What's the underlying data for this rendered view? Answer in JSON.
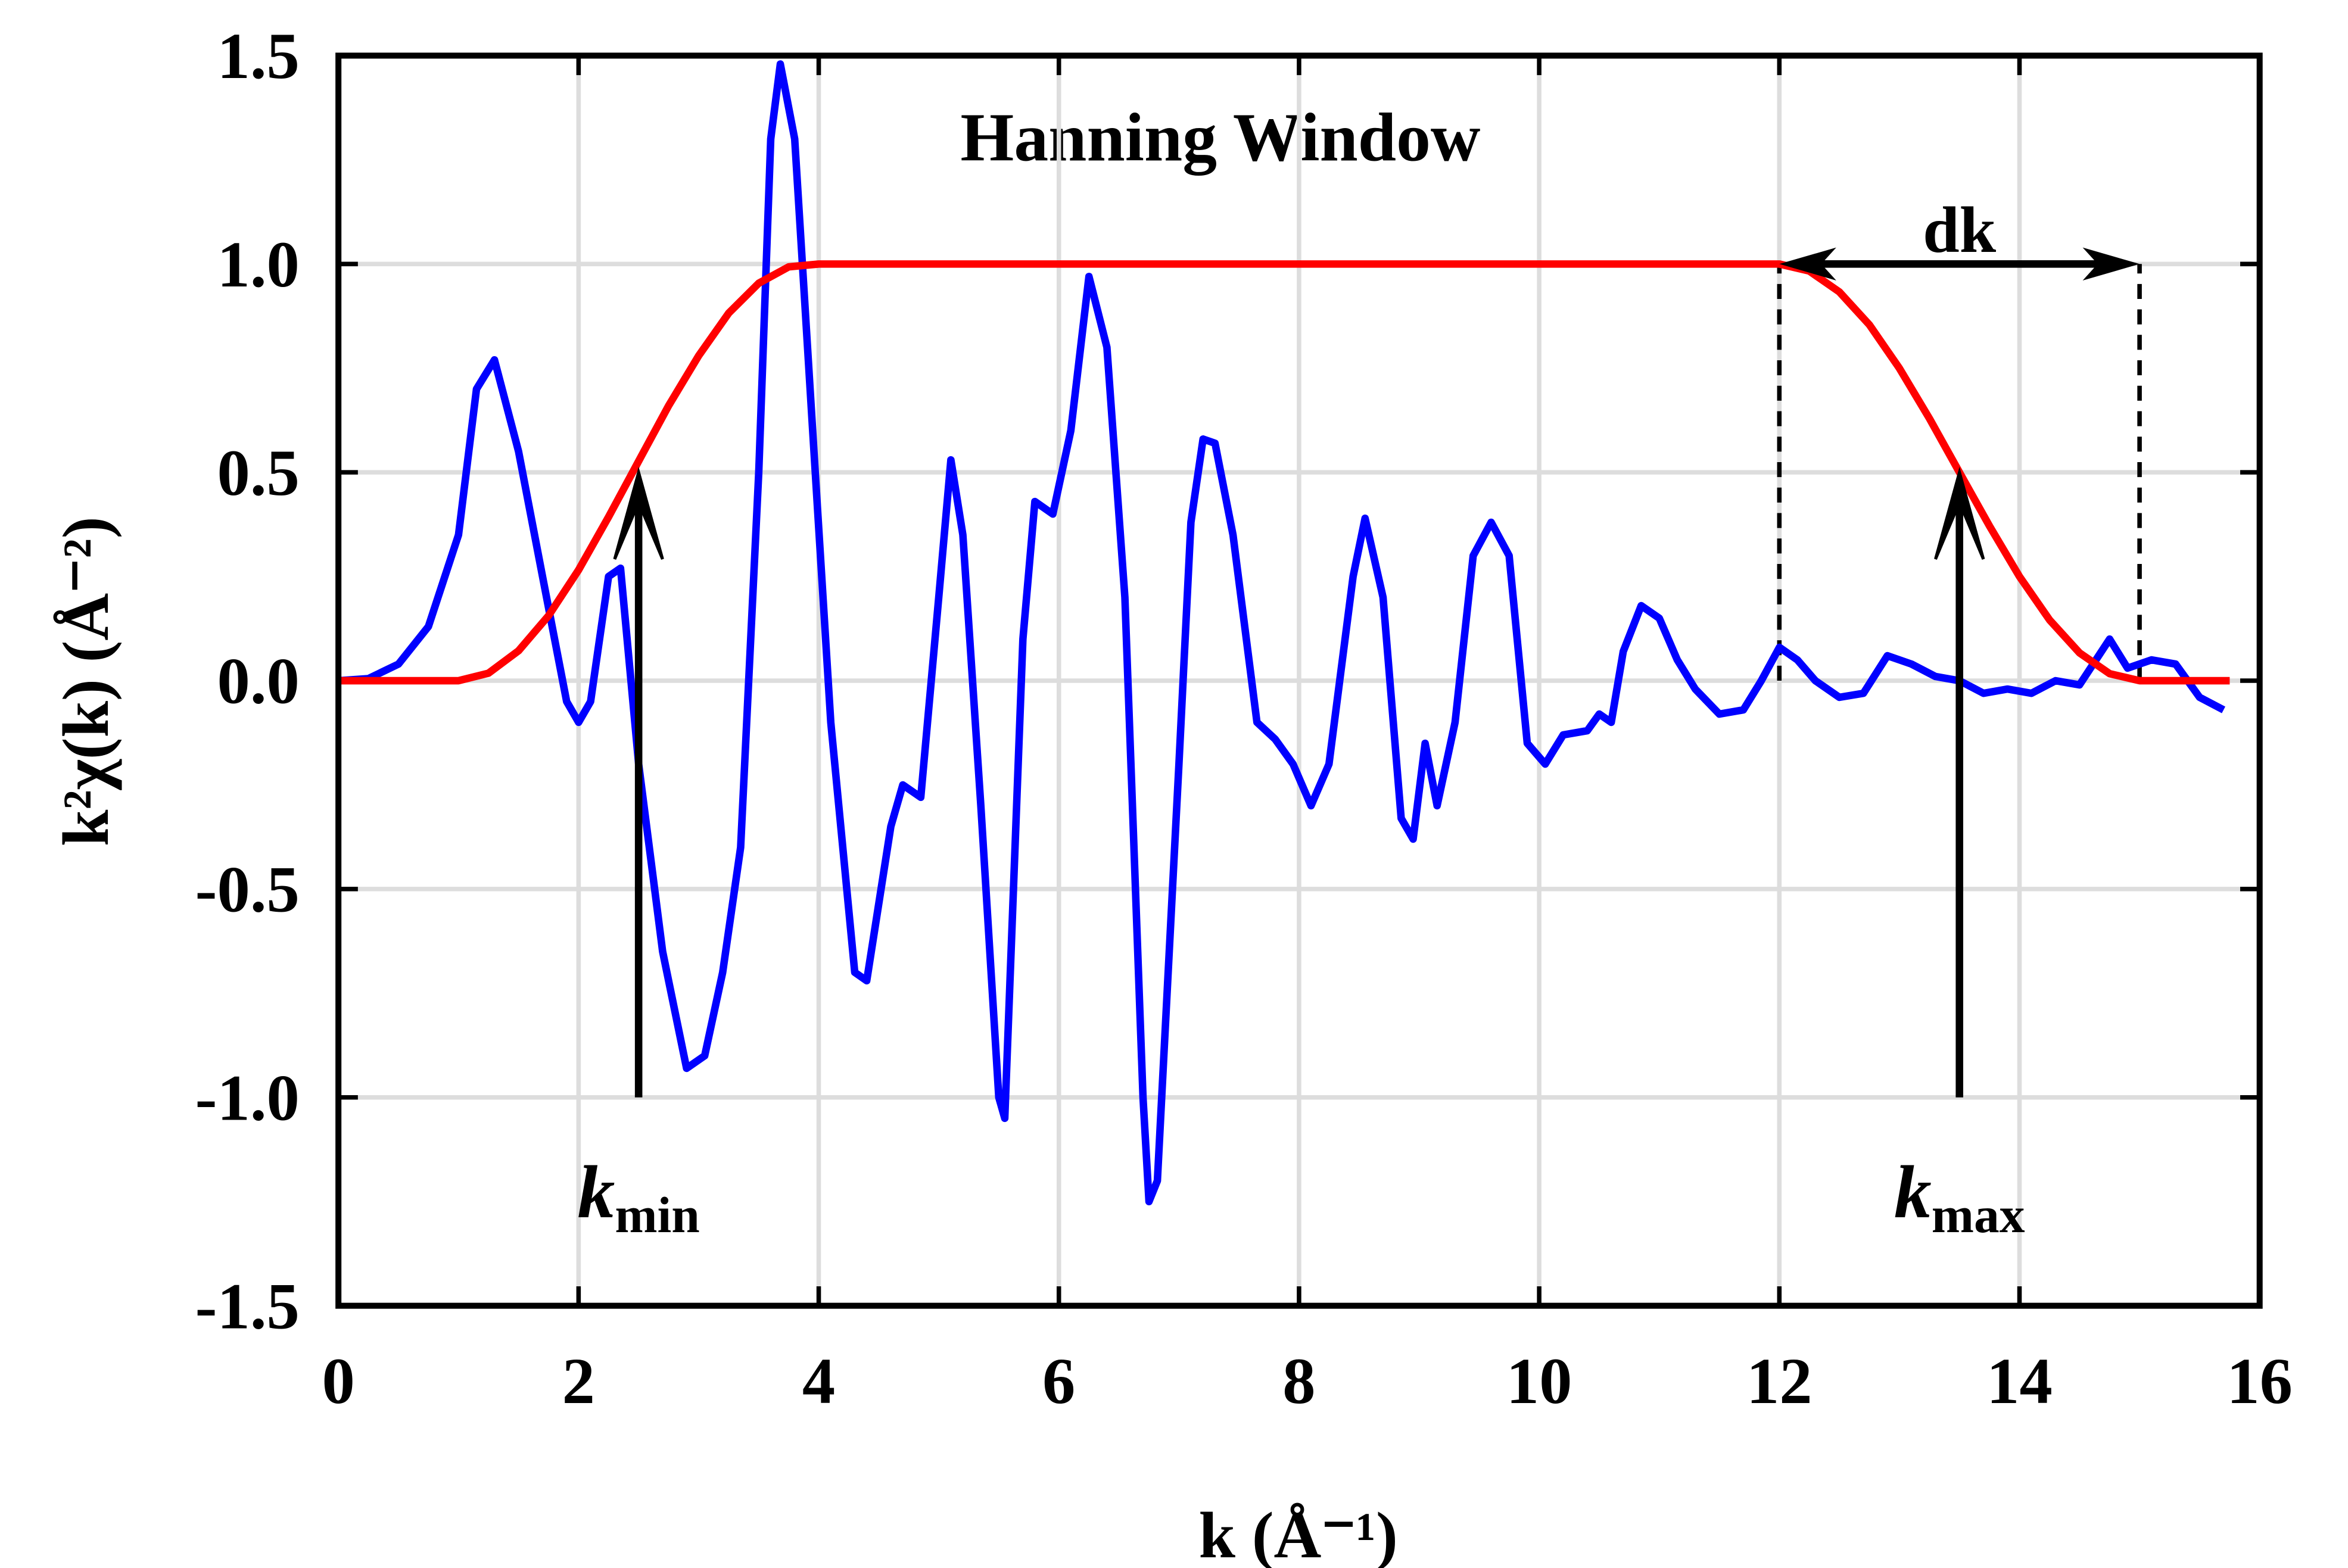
{
  "chart_data": {
    "type": "line",
    "title": "Hanning Window",
    "x_label": "k (Å⁻¹)",
    "y_label": "k²χ(k) (Å⁻²)",
    "xlim": [
      0,
      16
    ],
    "xticks": [
      0,
      2,
      4,
      6,
      8,
      10,
      12,
      14,
      16
    ],
    "ylim": [
      -1.5,
      1.5
    ],
    "yticks": [
      {
        "value": -1.5,
        "label": "-1.5"
      },
      {
        "value": -1.0,
        "label": "-1.0"
      },
      -0.5,
      {
        "value": 0.0,
        "label": "0.0"
      },
      0.5,
      {
        "value": 1.0,
        "label": "1.0"
      },
      1.5
    ],
    "grid": true,
    "series": [
      {
        "color": "#0000ff",
        "x": [
          0,
          0.25,
          0.5,
          0.75,
          1,
          1.15,
          1.3,
          1.5,
          1.7,
          1.9,
          2.0,
          2.1,
          2.25,
          2.35,
          2.5,
          2.7,
          2.9,
          3.05,
          3.2,
          3.35,
          3.5,
          3.6,
          3.68,
          3.8,
          3.95,
          4.1,
          4.3,
          4.4,
          4.6,
          4.7,
          4.85,
          5.0,
          5.1,
          5.2,
          5.35,
          5.5,
          5.55,
          5.7,
          5.8,
          5.95,
          6.1,
          6.25,
          6.4,
          6.55,
          6.7,
          6.75,
          6.82,
          7.0,
          7.1,
          7.2,
          7.3,
          7.45,
          7.65,
          7.8,
          7.95,
          8.1,
          8.25,
          8.45,
          8.55,
          8.7,
          8.85,
          8.95,
          9.05,
          9.15,
          9.3,
          9.45,
          9.6,
          9.75,
          9.9,
          10.05,
          10.2,
          10.4,
          10.5,
          10.6,
          10.7,
          10.85,
          11.0,
          11.15,
          11.3,
          11.5,
          11.7,
          11.85,
          12.0,
          12.15,
          12.3,
          12.5,
          12.7,
          12.9,
          13.1,
          13.3,
          13.5,
          13.7,
          13.9,
          14.1,
          14.3,
          14.5,
          14.75,
          14.9,
          15.1,
          15.3,
          15.5,
          15.7
        ],
        "values": [
          0,
          0.005,
          0.04,
          0.13,
          0.35,
          0.7,
          0.77,
          0.55,
          0.25,
          -0.05,
          -0.1,
          -0.05,
          0.25,
          0.27,
          -0.2,
          -0.65,
          -0.93,
          -0.9,
          -0.7,
          -0.4,
          0.5,
          1.3,
          1.48,
          1.3,
          0.6,
          -0.1,
          -0.7,
          -0.72,
          -0.35,
          -0.25,
          -0.28,
          0.2,
          0.53,
          0.35,
          -0.3,
          -1.0,
          -1.05,
          0.1,
          0.43,
          0.4,
          0.6,
          0.97,
          0.8,
          0.2,
          -1.0,
          -1.25,
          -1.2,
          -0.2,
          0.38,
          0.58,
          0.57,
          0.35,
          -0.1,
          -0.14,
          -0.2,
          -0.3,
          -0.2,
          0.25,
          0.39,
          0.2,
          -0.33,
          -0.38,
          -0.15,
          -0.3,
          -0.1,
          0.3,
          0.38,
          0.3,
          -0.15,
          -0.2,
          -0.13,
          -0.12,
          -0.08,
          -0.1,
          0.07,
          0.18,
          0.15,
          0.05,
          -0.02,
          -0.08,
          -0.07,
          0.0,
          0.08,
          0.05,
          0.0,
          -0.04,
          -0.03,
          0.06,
          0.04,
          0.01,
          0.0,
          -0.03,
          -0.02,
          -0.03,
          0.0,
          -0.01,
          0.1,
          0.03,
          0.05,
          0.04,
          -0.04,
          -0.07
        ]
      },
      {
        "color": "#ff0000",
        "x": [
          0,
          1,
          1.25,
          1.5,
          1.75,
          2,
          2.25,
          2.5,
          2.75,
          3,
          3.25,
          3.5,
          3.75,
          4,
          12,
          12.25,
          12.5,
          12.75,
          13,
          13.25,
          13.5,
          13.75,
          14,
          14.25,
          14.5,
          14.75,
          15,
          15.75
        ],
        "values": [
          0,
          0,
          0.018,
          0.072,
          0.156,
          0.266,
          0.393,
          0.527,
          0.66,
          0.78,
          0.882,
          0.954,
          0.993,
          1,
          1,
          0.983,
          0.933,
          0.854,
          0.75,
          0.629,
          0.5,
          0.371,
          0.25,
          0.146,
          0.067,
          0.017,
          0,
          0
        ]
      }
    ],
    "arrows": [
      {
        "x": 2.5,
        "y": [
          -1.0,
          0.5
        ],
        "label": "k",
        "sub": "min"
      },
      {
        "x": 13.5,
        "y": [
          -1.0,
          0.5
        ],
        "label": "k",
        "sub": "max"
      }
    ],
    "dk": {
      "label": "dk",
      "x": [
        12,
        15
      ],
      "y": [
        0,
        1.0
      ]
    }
  }
}
